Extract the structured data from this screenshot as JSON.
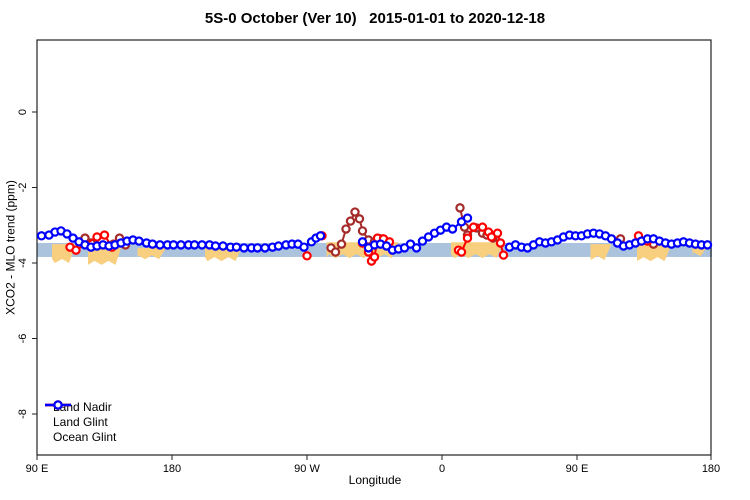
{
  "chart_data": {
    "type": "scatter",
    "title": "5S-0 October (Ver 10)   2015-01-01 to 2020-12-18",
    "xlabel": "Longitude",
    "ylabel": "XCO2 - MLO trend (ppm)",
    "x_axis": {
      "ticks": [
        {
          "lon": 90,
          "label": "90 E"
        },
        {
          "lon": 180,
          "label": "180"
        },
        {
          "lon": 270,
          "label": "90 W"
        },
        {
          "lon": 360,
          "label": "0"
        },
        {
          "lon": 450,
          "label": "90 E"
        },
        {
          "lon": 540,
          "label": "180"
        }
      ],
      "series_range": [
        90,
        540
      ]
    },
    "y_axis": {
      "ticks": [
        {
          "value": 0,
          "label": "0"
        },
        {
          "value": -2,
          "label": "-2"
        },
        {
          "value": -4,
          "label": "-4"
        },
        {
          "value": -6,
          "label": "-6"
        },
        {
          "value": -8,
          "label": "-8"
        }
      ],
      "range": [
        -9.1,
        1.9
      ]
    },
    "bands": {
      "blue_band": {
        "color": "#ACC3DE",
        "from_lon": 90,
        "to_lon": 540,
        "top": -3.47,
        "bottom": -3.84
      },
      "orange_patches": {
        "color": "#F8CF7E",
        "patches": [
          {
            "from_lon": 100,
            "to_lon": 116,
            "top": -3.5,
            "bottom": -4.0
          },
          {
            "from_lon": 124,
            "to_lon": 147,
            "top": -3.48,
            "bottom": -4.05
          },
          {
            "from_lon": 157,
            "to_lon": 176,
            "top": -3.6,
            "bottom": -3.9
          },
          {
            "from_lon": 202,
            "to_lon": 227,
            "top": -3.55,
            "bottom": -3.95
          },
          {
            "from_lon": 283,
            "to_lon": 331,
            "top": -3.45,
            "bottom": -3.87
          },
          {
            "from_lon": 366,
            "to_lon": 401,
            "top": -3.45,
            "bottom": -3.87
          },
          {
            "from_lon": 459,
            "to_lon": 473,
            "top": -3.5,
            "bottom": -3.92
          },
          {
            "from_lon": 490,
            "to_lon": 513,
            "top": -3.52,
            "bottom": -3.95
          },
          {
            "from_lon": 527,
            "to_lon": 537,
            "top": -3.55,
            "bottom": -3.82
          }
        ]
      }
    },
    "series": [
      {
        "name": "Land Nadir",
        "color": "#A52A2A",
        "segments": [
          [
            [
              122,
              -3.34
            ],
            [
              126,
              -3.47
            ],
            [
              141,
              -3.5
            ],
            [
              145,
              -3.34
            ],
            [
              149,
              -3.52
            ]
          ],
          [
            [
              286,
              -3.6
            ],
            [
              289,
              -3.71
            ],
            [
              293,
              -3.5
            ],
            [
              296,
              -3.1
            ],
            [
              299,
              -2.89
            ],
            [
              302,
              -2.65
            ],
            [
              305,
              -2.83
            ],
            [
              307,
              -3.15
            ],
            [
              311,
              -3.39
            ],
            [
              315,
              -3.44
            ],
            [
              319,
              -3.36
            ],
            [
              323,
              -3.47
            ]
          ],
          [
            [
              372,
              -2.54
            ],
            [
              375,
              -3.05
            ],
            [
              377,
              -3.26
            ],
            [
              383,
              -3.07
            ],
            [
              387,
              -3.21
            ],
            [
              390,
              -3.26
            ],
            [
              394,
              -3.34
            ]
          ],
          [
            [
              479,
              -3.36
            ]
          ],
          [
            [
              501,
              -3.5
            ]
          ]
        ]
      },
      {
        "name": "Land Glint",
        "color": "#FF0000",
        "segments": [
          [
            [
              112,
              -3.58
            ],
            [
              116,
              -3.66
            ],
            [
              130,
              -3.31
            ],
            [
              135,
              -3.26
            ],
            [
              140,
              -3.58
            ]
          ],
          [
            [
              270,
              -3.81
            ]
          ],
          [
            [
              280,
              -3.28
            ]
          ],
          [
            [
              307,
              -3.47
            ],
            [
              311,
              -3.71
            ],
            [
              313,
              -3.95
            ],
            [
              315,
              -3.84
            ],
            [
              317,
              -3.34
            ],
            [
              321,
              -3.36
            ],
            [
              325,
              -3.44
            ]
          ],
          [
            [
              371,
              -3.66
            ],
            [
              373,
              -3.71
            ],
            [
              377,
              -3.34
            ],
            [
              381,
              -3.05
            ],
            [
              387,
              -3.05
            ],
            [
              391,
              -3.18
            ],
            [
              393,
              -3.31
            ],
            [
              397,
              -3.21
            ],
            [
              399,
              -3.47
            ],
            [
              401,
              -3.79
            ]
          ],
          [
            [
              491,
              -3.28
            ],
            [
              497,
              -3.42
            ]
          ]
        ]
      },
      {
        "name": "Ocean Glint",
        "color": "#0000FF",
        "segments": [
          [
            [
              93,
              -3.28
            ],
            [
              98,
              -3.26
            ],
            [
              102,
              -3.18
            ],
            [
              106,
              -3.15
            ],
            [
              110,
              -3.23
            ],
            [
              114,
              -3.34
            ],
            [
              118,
              -3.44
            ],
            [
              122,
              -3.52
            ],
            [
              126,
              -3.58
            ],
            [
              130,
              -3.55
            ],
            [
              134,
              -3.52
            ],
            [
              138,
              -3.55
            ],
            [
              142,
              -3.52
            ],
            [
              146,
              -3.47
            ],
            [
              150,
              -3.42
            ],
            [
              154,
              -3.39
            ],
            [
              158,
              -3.42
            ],
            [
              163,
              -3.47
            ],
            [
              167,
              -3.5
            ],
            [
              172,
              -3.52
            ],
            [
              177,
              -3.52
            ],
            [
              181,
              -3.52
            ],
            [
              186,
              -3.52
            ],
            [
              191,
              -3.52
            ],
            [
              195,
              -3.52
            ],
            [
              200,
              -3.52
            ],
            [
              205,
              -3.52
            ],
            [
              209,
              -3.55
            ],
            [
              214,
              -3.55
            ],
            [
              219,
              -3.58
            ],
            [
              223,
              -3.58
            ],
            [
              228,
              -3.6
            ],
            [
              233,
              -3.6
            ],
            [
              237,
              -3.6
            ],
            [
              242,
              -3.6
            ],
            [
              247,
              -3.58
            ],
            [
              251,
              -3.55
            ],
            [
              256,
              -3.52
            ],
            [
              260,
              -3.5
            ],
            [
              264,
              -3.5
            ],
            [
              268,
              -3.58
            ],
            [
              273,
              -3.44
            ],
            [
              276,
              -3.34
            ],
            [
              279,
              -3.28
            ]
          ],
          [
            [
              307,
              -3.44
            ],
            [
              311,
              -3.6
            ],
            [
              315,
              -3.52
            ],
            [
              319,
              -3.5
            ],
            [
              323,
              -3.55
            ],
            [
              327,
              -3.66
            ],
            [
              331,
              -3.63
            ],
            [
              335,
              -3.6
            ],
            [
              339,
              -3.5
            ],
            [
              343,
              -3.6
            ],
            [
              347,
              -3.42
            ],
            [
              351,
              -3.31
            ],
            [
              355,
              -3.21
            ],
            [
              359,
              -3.13
            ],
            [
              363,
              -3.05
            ],
            [
              367,
              -3.1
            ],
            [
              373,
              -2.91
            ],
            [
              377,
              -2.81
            ]
          ],
          [
            [
              405,
              -3.58
            ],
            [
              409,
              -3.52
            ],
            [
              413,
              -3.58
            ],
            [
              417,
              -3.6
            ],
            [
              421,
              -3.52
            ],
            [
              425,
              -3.44
            ],
            [
              429,
              -3.47
            ],
            [
              433,
              -3.44
            ],
            [
              437,
              -3.39
            ],
            [
              441,
              -3.31
            ],
            [
              445,
              -3.26
            ],
            [
              449,
              -3.28
            ],
            [
              453,
              -3.28
            ],
            [
              457,
              -3.23
            ],
            [
              461,
              -3.21
            ],
            [
              465,
              -3.23
            ],
            [
              469,
              -3.28
            ],
            [
              473,
              -3.36
            ],
            [
              477,
              -3.47
            ],
            [
              481,
              -3.55
            ],
            [
              485,
              -3.52
            ],
            [
              489,
              -3.47
            ],
            [
              493,
              -3.42
            ],
            [
              497,
              -3.36
            ],
            [
              501,
              -3.36
            ],
            [
              505,
              -3.42
            ],
            [
              509,
              -3.47
            ],
            [
              513,
              -3.5
            ],
            [
              517,
              -3.47
            ],
            [
              521,
              -3.44
            ],
            [
              525,
              -3.47
            ],
            [
              529,
              -3.5
            ],
            [
              533,
              -3.52
            ],
            [
              537,
              -3.52
            ]
          ]
        ]
      }
    ],
    "legend_position": "bottom-left"
  }
}
